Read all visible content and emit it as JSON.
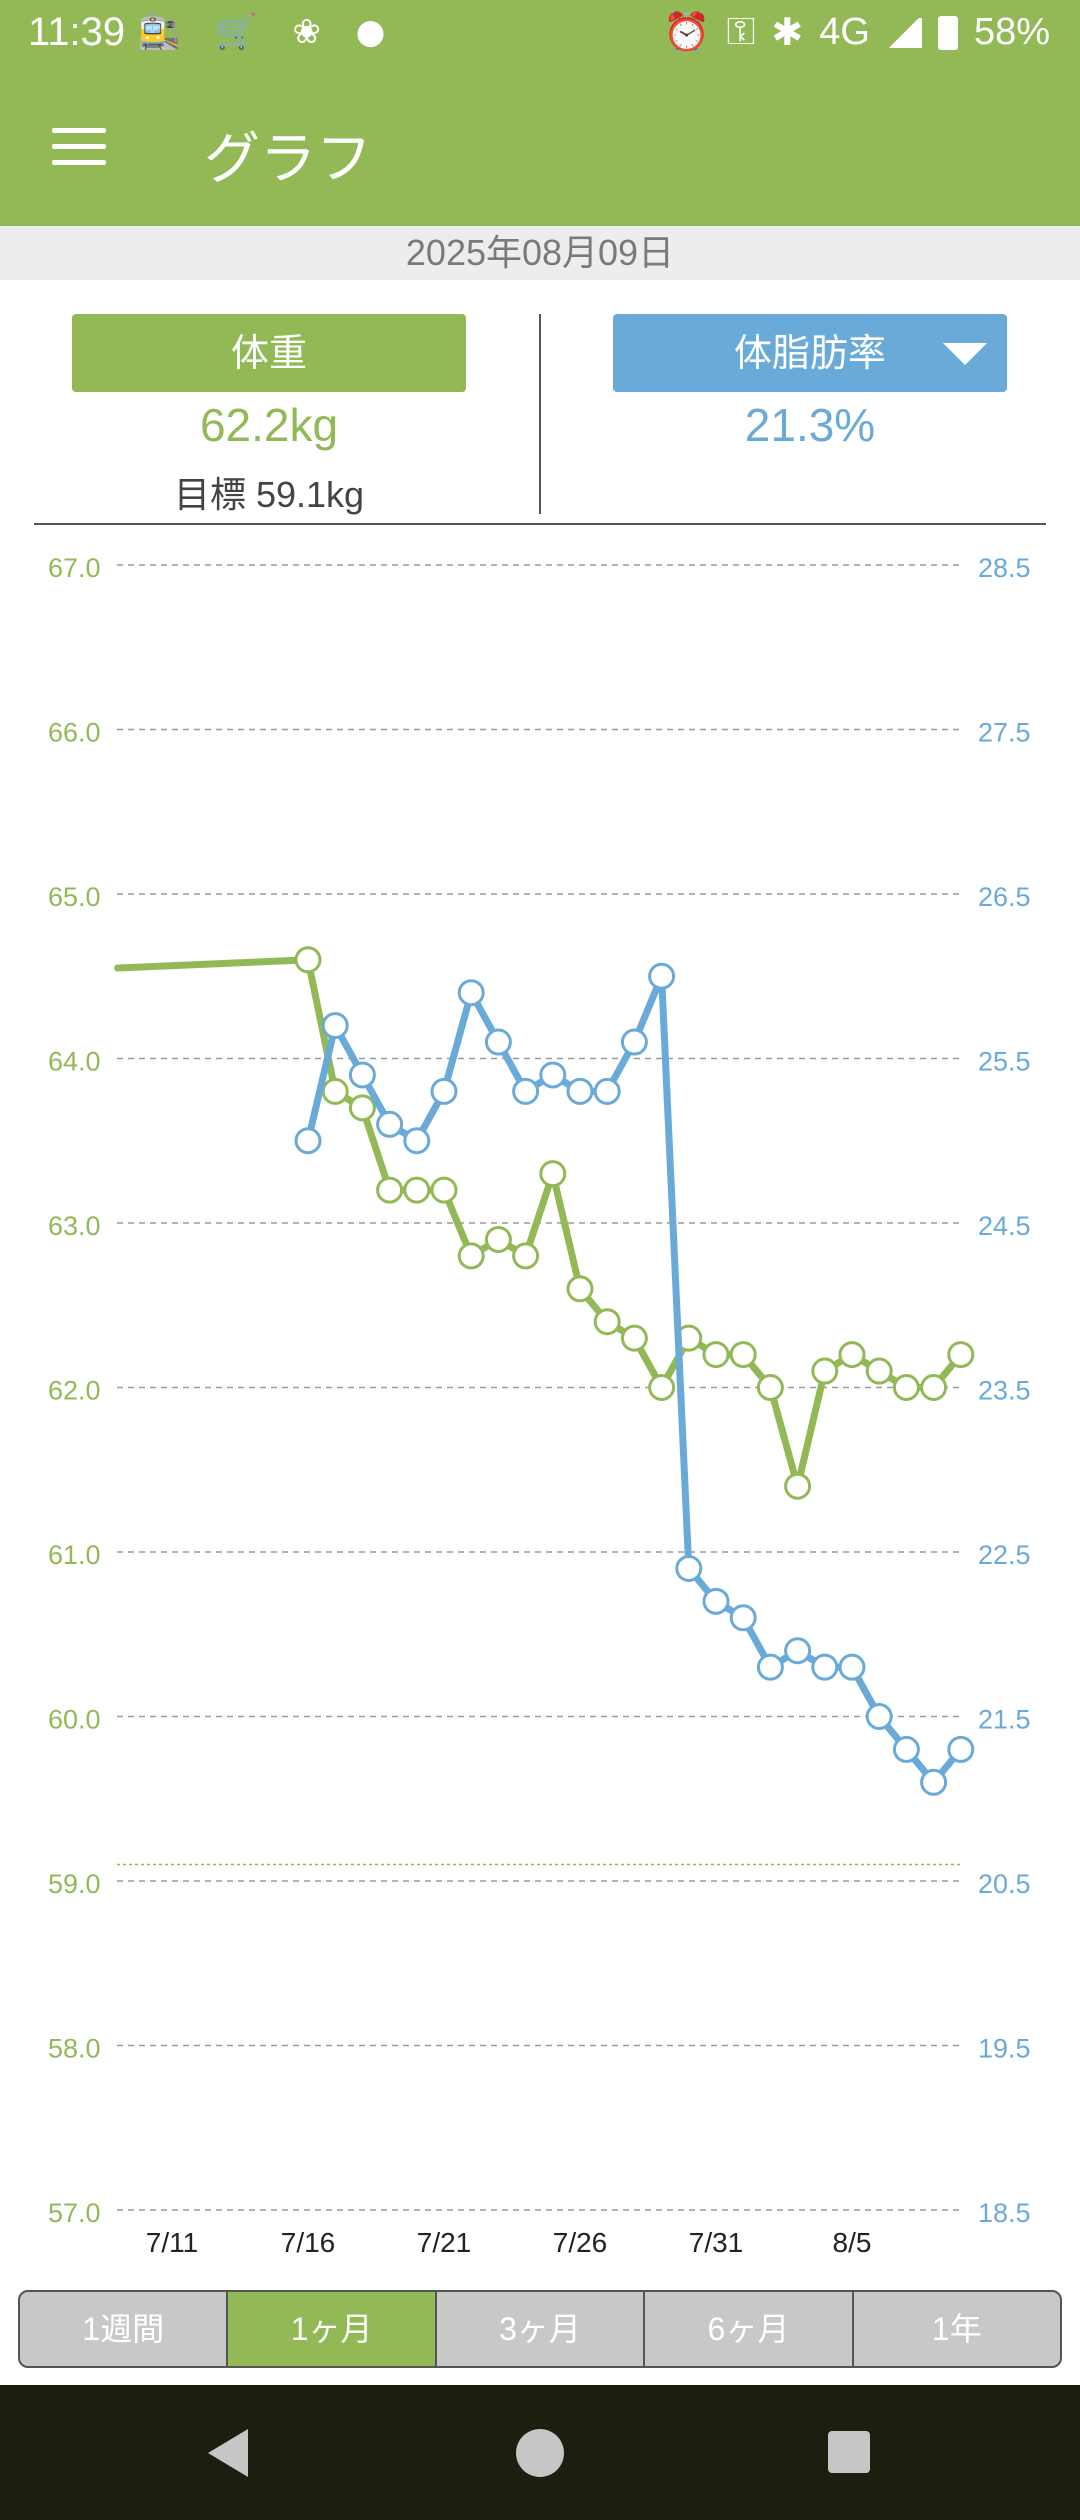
{
  "status_bar": {
    "time": "11:39",
    "left_icons": [
      "train-icon",
      "cart-icon",
      "app-icon",
      "app-badge-icon"
    ],
    "network": "4G",
    "battery": "58%"
  },
  "app_bar": {
    "title": "グラフ"
  },
  "date": "2025年08月09日",
  "summary": {
    "weight_label": "体重",
    "weight_value": "62.2kg",
    "goal": "目標 59.1kg",
    "fat_label": "体脂肪率",
    "fat_value": "21.3%"
  },
  "colors": {
    "weight": "#93b957",
    "fat": "#6aaad8",
    "dark_nav": "#1b1f10"
  },
  "chart_data": {
    "type": "line",
    "left_axis": {
      "ticks": [
        "67.0",
        "66.0",
        "65.0",
        "64.0",
        "63.0",
        "62.0",
        "61.0",
        "60.0",
        "59.0",
        "58.0",
        "57.0"
      ],
      "ylim": [
        57.0,
        67.0
      ]
    },
    "right_axis": {
      "ticks": [
        "28.5",
        "27.5",
        "26.5",
        "25.5",
        "24.5",
        "23.5",
        "22.5",
        "21.5",
        "20.5",
        "19.5",
        "18.5"
      ],
      "ylim": [
        18.5,
        28.5
      ]
    },
    "x_ticks": [
      "7/11",
      "7/16",
      "7/21",
      "7/26",
      "7/31",
      "8/5"
    ],
    "x_tick_days": [
      11,
      16,
      21,
      26,
      31,
      36
    ],
    "goal_line": 59.1,
    "series": [
      {
        "axis": "left",
        "color": "#93b957",
        "lead_in": {
          "x": 9,
          "y": 64.55
        },
        "x": [
          16,
          17,
          18,
          19,
          20,
          21,
          22,
          23,
          24,
          25,
          26,
          27,
          28,
          29,
          30,
          31,
          32,
          33,
          34,
          35,
          36,
          37,
          38,
          39,
          40
        ],
        "values": [
          64.6,
          63.8,
          63.7,
          63.2,
          63.2,
          63.2,
          62.8,
          62.9,
          62.8,
          63.3,
          62.6,
          62.4,
          62.3,
          62.0,
          62.3,
          62.2,
          62.2,
          62.0,
          61.4,
          62.1,
          62.2,
          62.1,
          62.0,
          62.0,
          62.2
        ]
      },
      {
        "axis": "right",
        "color": "#6aaad8",
        "x": [
          16,
          17,
          18,
          19,
          20,
          21,
          22,
          23,
          24,
          25,
          26,
          27,
          28,
          29,
          30,
          31,
          32,
          33,
          34,
          35,
          36,
          37,
          38,
          39,
          40
        ],
        "values": [
          25.0,
          25.7,
          25.4,
          25.1,
          25.0,
          25.3,
          25.9,
          25.6,
          25.3,
          25.4,
          25.3,
          25.3,
          25.6,
          26.0,
          22.4,
          22.2,
          22.1,
          21.8,
          21.9,
          21.8,
          21.8,
          21.5,
          21.3,
          21.1,
          21.3
        ]
      }
    ]
  },
  "tabs": [
    {
      "label": "1週間",
      "active": false
    },
    {
      "label": "1ヶ月",
      "active": true
    },
    {
      "label": "3ヶ月",
      "active": false
    },
    {
      "label": "6ヶ月",
      "active": false
    },
    {
      "label": "1年",
      "active": false
    }
  ]
}
